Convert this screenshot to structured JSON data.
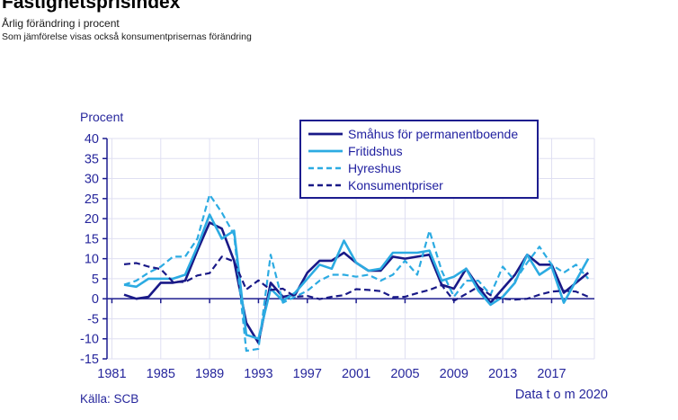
{
  "header": {
    "title": "Fastighetsprisindex",
    "subtitle1": "Årlig förändring i procent",
    "subtitle2": "Som jämförelse visas också konsumentprisernas förändring"
  },
  "chart": {
    "y_axis_title": "Procent",
    "source": "Källa: SCB",
    "footnote": "Data t o m 2020"
  },
  "chart_data": {
    "type": "line",
    "title": "Fastighetsprisindex",
    "xlabel": "",
    "ylabel": "Procent",
    "ylim": [
      -15,
      40
    ],
    "y_tick_step": 5,
    "grid": true,
    "legend_position": "top-center",
    "x_axis_ticks": [
      "1981",
      "1985",
      "1989",
      "1993",
      "1997",
      "2001",
      "2005",
      "2009",
      "2013",
      "2017"
    ],
    "y_axis_ticks": [
      "40",
      "35",
      "30",
      "25",
      "20",
      "15",
      "10",
      "5",
      "0",
      "-5",
      "-10",
      "-15"
    ],
    "years": [
      1982,
      1983,
      1984,
      1985,
      1986,
      1987,
      1988,
      1989,
      1990,
      1991,
      1992,
      1993,
      1994,
      1995,
      1996,
      1997,
      1998,
      1999,
      2000,
      2001,
      2002,
      2003,
      2004,
      2005,
      2006,
      2007,
      2008,
      2009,
      2010,
      2011,
      2012,
      2013,
      2014,
      2015,
      2016,
      2017,
      2018,
      2019,
      2020
    ],
    "series": [
      {
        "name": "Småhus för permanentboende",
        "color": "#191987",
        "dash": "solid",
        "values": [
          1,
          0,
          0.5,
          4,
          4,
          4.5,
          12,
          19,
          17.5,
          9.5,
          -6,
          -11,
          4,
          0.5,
          1,
          6.5,
          9.5,
          9.5,
          11.5,
          9,
          7,
          7,
          10.5,
          10,
          10.5,
          11,
          3.5,
          2.5,
          7.5,
          3,
          -1,
          2.5,
          6,
          11,
          8.5,
          8.5,
          1.5,
          4,
          6.5
        ]
      },
      {
        "name": "Fritidshus",
        "color": "#2cabe2",
        "dash": "solid",
        "values": [
          3.5,
          3,
          5,
          5,
          5,
          6,
          13,
          21,
          15,
          17,
          -9,
          -10,
          2.5,
          -0.5,
          1.5,
          5,
          8.5,
          7.5,
          14.5,
          9,
          7,
          7.5,
          11.5,
          11.5,
          11.5,
          12,
          4.5,
          5.5,
          7.5,
          2,
          -1.5,
          0.5,
          4,
          11,
          6,
          8,
          -1,
          4.5,
          10
        ]
      },
      {
        "name": "Hyreshus",
        "color": "#2cabe2",
        "dash": "dashed",
        "values": [
          3.5,
          4.5,
          6.5,
          8,
          10.5,
          10.5,
          15,
          26,
          21.5,
          16,
          -13,
          -12.5,
          11,
          -1,
          0.5,
          2,
          4.5,
          6,
          6,
          5.5,
          6,
          4.5,
          6,
          9.5,
          6,
          17,
          7,
          0.5,
          4.5,
          4.5,
          1,
          8,
          4.5,
          9,
          13,
          8.5,
          6.5,
          8.5,
          5
        ]
      },
      {
        "name": "Konsumentpriser",
        "color": "#191987",
        "dash": "dashed",
        "values": [
          8.6,
          8.9,
          8.0,
          7.4,
          4.2,
          4.2,
          5.8,
          6.4,
          10.5,
          9.3,
          2.3,
          4.6,
          2.2,
          2.5,
          0.5,
          0.7,
          -0.1,
          0.5,
          0.9,
          2.4,
          2.2,
          1.9,
          0.4,
          0.5,
          1.4,
          2.2,
          3.4,
          -0.5,
          1.2,
          3.0,
          0.9,
          0.0,
          -0.2,
          0.0,
          1.0,
          1.8,
          2.0,
          1.8,
          0.5
        ]
      }
    ]
  }
}
